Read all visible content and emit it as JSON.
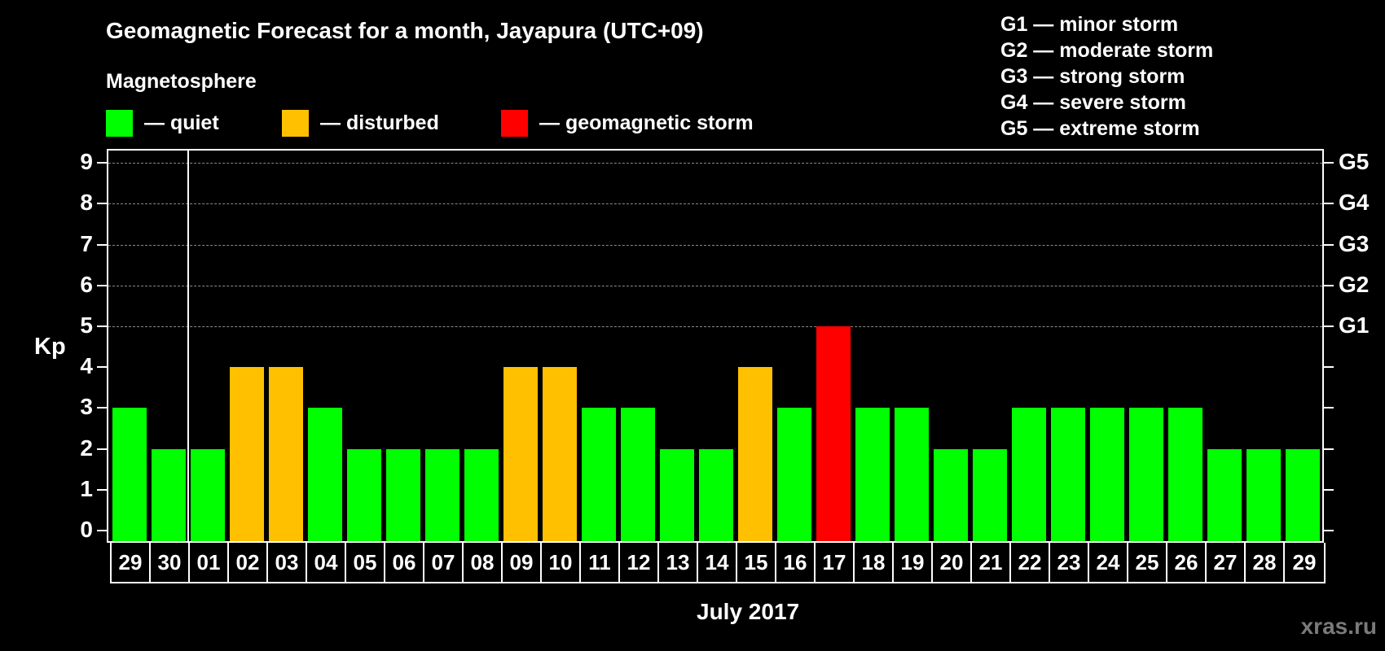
{
  "title": "Geomagnetic Forecast for a month, Jayapura (UTC+09)",
  "legend": {
    "heading": "Magnetosphere",
    "items": [
      {
        "label": "— quiet",
        "color": "#00ff00"
      },
      {
        "label": "— disturbed",
        "color": "#ffc000"
      },
      {
        "label": "— geomagnetic storm",
        "color": "#ff0000"
      }
    ]
  },
  "gscale_legend": [
    "G1 — minor storm",
    "G2 — moderate storm",
    "G3 — strong storm",
    "G4 — severe storm",
    "G5 — extreme storm"
  ],
  "watermark": "xras.ru",
  "chart_data": {
    "type": "bar",
    "title": "Geomagnetic Forecast for a month, Jayapura (UTC+09)",
    "xlabel": "July 2017",
    "ylabel": "Kp",
    "ylim": [
      0,
      9
    ],
    "yticks": [
      0,
      1,
      2,
      3,
      4,
      5,
      6,
      7,
      8,
      9
    ],
    "right_axis_labels": [
      {
        "kp": 5,
        "label": "G1"
      },
      {
        "kp": 6,
        "label": "G2"
      },
      {
        "kp": 7,
        "label": "G3"
      },
      {
        "kp": 8,
        "label": "G4"
      },
      {
        "kp": 9,
        "label": "G5"
      }
    ],
    "grid": "dashed horizontal lines at Kp 5-9",
    "categories": [
      "29",
      "30",
      "01",
      "02",
      "03",
      "04",
      "05",
      "06",
      "07",
      "08",
      "09",
      "10",
      "11",
      "12",
      "13",
      "14",
      "15",
      "16",
      "17",
      "18",
      "19",
      "20",
      "21",
      "22",
      "23",
      "24",
      "25",
      "26",
      "27",
      "28",
      "29"
    ],
    "values": [
      3,
      2,
      2,
      4,
      4,
      3,
      2,
      2,
      2,
      2,
      4,
      4,
      3,
      3,
      2,
      2,
      4,
      3,
      5,
      3,
      3,
      2,
      2,
      3,
      3,
      3,
      3,
      3,
      2,
      2,
      2
    ],
    "status": [
      "quiet",
      "quiet",
      "quiet",
      "disturbed",
      "disturbed",
      "quiet",
      "quiet",
      "quiet",
      "quiet",
      "quiet",
      "disturbed",
      "disturbed",
      "quiet",
      "quiet",
      "quiet",
      "quiet",
      "disturbed",
      "quiet",
      "storm",
      "quiet",
      "quiet",
      "quiet",
      "quiet",
      "quiet",
      "quiet",
      "quiet",
      "quiet",
      "quiet",
      "quiet",
      "quiet",
      "quiet"
    ],
    "colors": {
      "quiet": "#00ff00",
      "disturbed": "#ffc000",
      "storm": "#ff0000"
    },
    "month_separator_after_index": 1
  }
}
